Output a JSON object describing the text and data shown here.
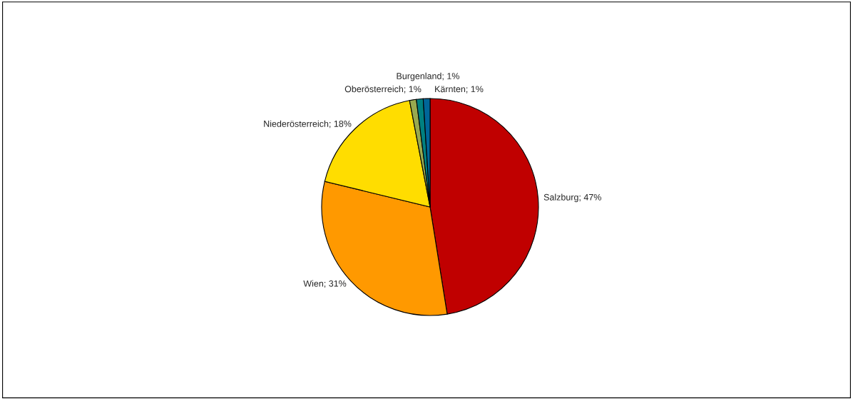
{
  "chart_data": {
    "type": "pie",
    "categories": [
      "Salzburg",
      "Wien",
      "Niederösterreich",
      "Oberösterreich",
      "Burgenland",
      "Kärnten"
    ],
    "values": [
      47,
      31,
      18,
      1,
      1,
      1
    ],
    "value_labels": [
      "47%",
      "31%",
      "18%",
      "1%",
      "1%",
      "1%"
    ],
    "colors": [
      "#c00000",
      "#ff9900",
      "#ffdd00",
      "#99a94f",
      "#008080",
      "#006699"
    ],
    "legend": false
  }
}
